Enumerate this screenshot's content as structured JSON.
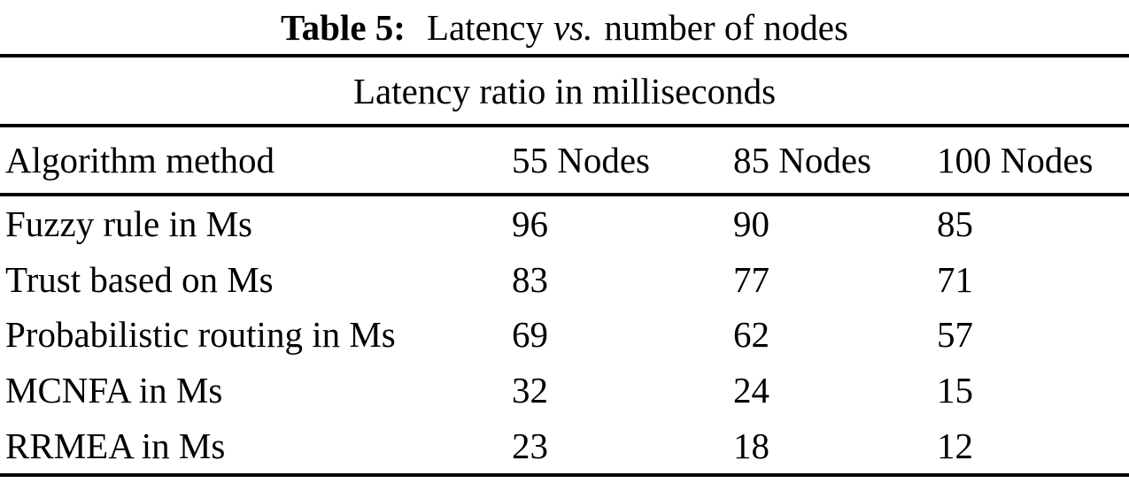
{
  "page": {
    "background": "#ffffff",
    "text_color": "#000000",
    "rule_color": "#000000"
  },
  "caption": {
    "label": "Table 5:",
    "text_before_vs": "Latency",
    "vs": "vs.",
    "text_after_vs": "number of nodes"
  },
  "table": {
    "subtitle": "Latency ratio in milliseconds",
    "headers": [
      "Algorithm method",
      "55 Nodes",
      "85 Nodes",
      "100 Nodes"
    ],
    "rows": [
      {
        "cells": [
          "Fuzzy rule in Ms",
          "96",
          "90",
          "85"
        ]
      },
      {
        "cells": [
          "Trust based on Ms",
          "83",
          "77",
          "71"
        ]
      },
      {
        "cells": [
          "Probabilistic routing in Ms",
          "69",
          "62",
          "57"
        ]
      },
      {
        "cells": [
          "MCNFA in Ms",
          "32",
          "24",
          "15"
        ]
      },
      {
        "cells": [
          "RRMEA in Ms",
          "23",
          "18",
          "12"
        ]
      }
    ]
  },
  "chart_data": {
    "type": "table",
    "title": "Table 5: Latency vs. number of nodes",
    "subtitle": "Latency ratio in milliseconds",
    "columns": [
      "Algorithm method",
      "55 Nodes",
      "85 Nodes",
      "100 Nodes"
    ],
    "categories": [
      "55 Nodes",
      "85 Nodes",
      "100 Nodes"
    ],
    "series": [
      {
        "name": "Fuzzy rule in Ms",
        "values": [
          96,
          90,
          85
        ]
      },
      {
        "name": "Trust based on Ms",
        "values": [
          83,
          77,
          71
        ]
      },
      {
        "name": "Probabilistic routing in Ms",
        "values": [
          69,
          62,
          57
        ]
      },
      {
        "name": "MCNFA in Ms",
        "values": [
          32,
          24,
          15
        ]
      },
      {
        "name": "RRMEA in Ms",
        "values": [
          23,
          18,
          12
        ]
      }
    ]
  }
}
